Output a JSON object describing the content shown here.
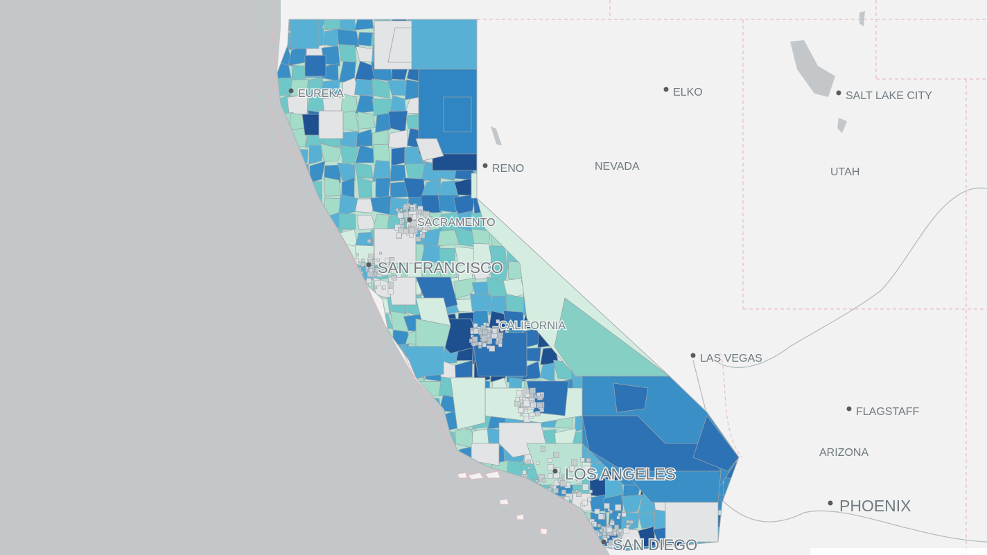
{
  "map": {
    "colors": {
      "ocean": "#c3c7c9",
      "land": "#f2f2f2",
      "no_data": "#e3e4e6",
      "choropleth_scale": [
        "#d4ede0",
        "#a3dcc9",
        "#6fc7c8",
        "#58b1d4",
        "#3a8fc6",
        "#2c72b5",
        "#1e4f8f"
      ]
    },
    "cities": [
      {
        "name": "EUREKA"
      },
      {
        "name": "ELKO"
      },
      {
        "name": "SALT LAKE CITY"
      },
      {
        "name": "RENO"
      },
      {
        "name": "SACRAMENTO"
      },
      {
        "name": "SAN FRANCISCO"
      },
      {
        "name": "LAS VEGAS"
      },
      {
        "name": "FLAGSTAFF"
      },
      {
        "name": "LOS ANGELES"
      },
      {
        "name": "PHOENIX"
      },
      {
        "name": "SAN DIEGO"
      }
    ],
    "regions": [
      {
        "name": "NEVADA"
      },
      {
        "name": "UTAH"
      },
      {
        "name": "CALIFORNIA"
      },
      {
        "name": "ARIZONA"
      }
    ]
  }
}
